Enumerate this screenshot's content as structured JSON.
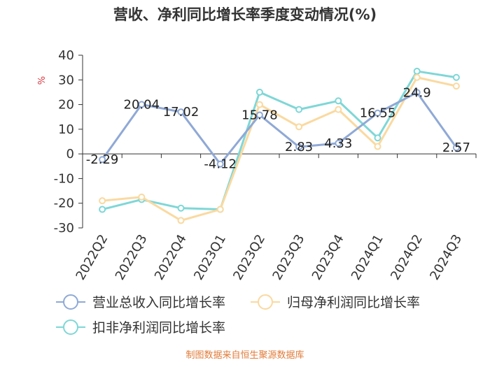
{
  "chart_data": {
    "type": "line",
    "title": "营收、净利同比增长率季度变动情况(%)",
    "ylabel": "%",
    "xlabel": "",
    "ylim": [
      -30,
      40
    ],
    "yticks": [
      40,
      30,
      20,
      10,
      0,
      -10,
      -20,
      -30
    ],
    "categories": [
      "2022Q2",
      "2022Q3",
      "2022Q4",
      "2023Q1",
      "2023Q2",
      "2023Q3",
      "2023Q4",
      "2024Q1",
      "2024Q2",
      "2024Q3"
    ],
    "series": [
      {
        "name": "营业总收入同比增长率",
        "color": "#8fa9d6",
        "labeled": true,
        "values": [
          -2.29,
          20.04,
          17.02,
          -4.12,
          15.78,
          2.83,
          4.33,
          16.55,
          24.9,
          2.57
        ]
      },
      {
        "name": "归母净利润同比增长率",
        "color": "#fad9a0",
        "values": [
          -19,
          -17.5,
          -27,
          -22.5,
          20,
          11,
          18,
          3,
          31,
          27.5
        ]
      },
      {
        "name": "扣非净利润同比增长率",
        "color": "#7fd7d7",
        "values": [
          -22.5,
          -18.5,
          -22,
          -22.5,
          25,
          18,
          21.5,
          6.5,
          33.5,
          31
        ]
      }
    ],
    "legend_position": "bottom",
    "grid": false
  },
  "source_text": "制图数据来自恒生聚源数据库"
}
